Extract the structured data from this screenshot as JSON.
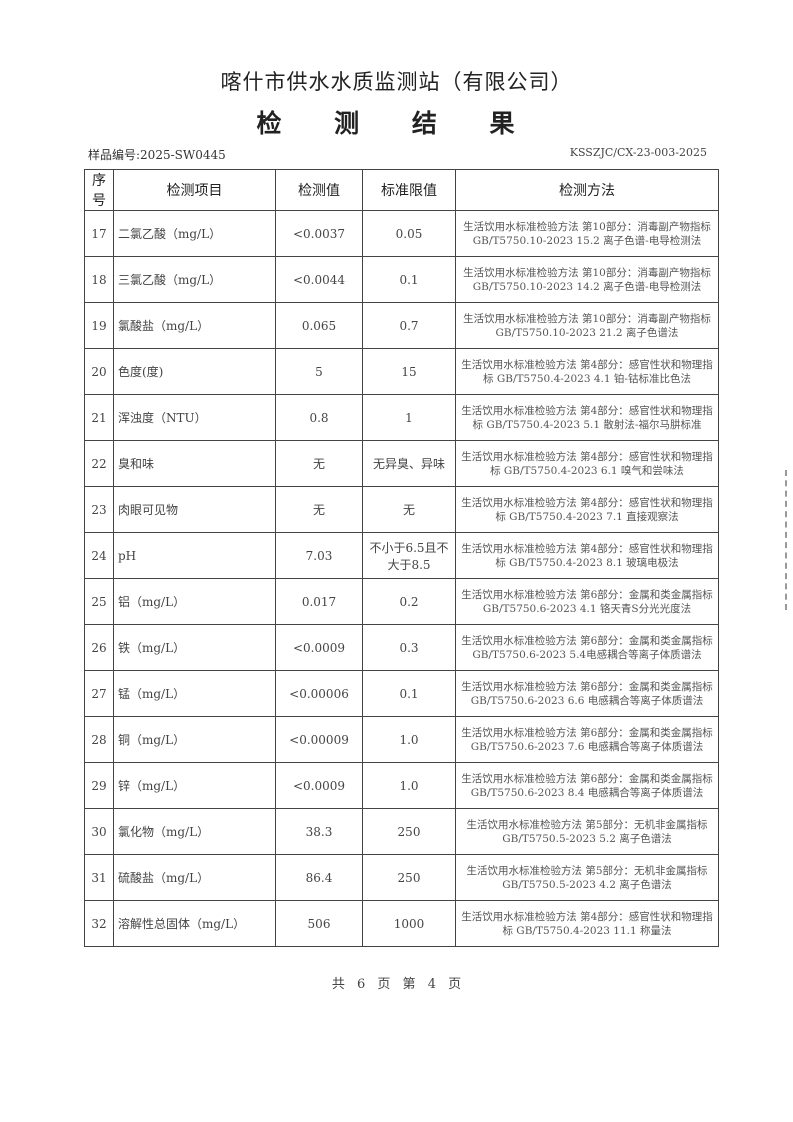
{
  "header": {
    "organization": "喀什市供水水质监测站（有限公司）",
    "title": "检 测 结 果",
    "sample_no": "样品编号:2025-SW0445",
    "doc_code": "KSSZJC/CX-23-003-2025"
  },
  "table": {
    "columns": [
      "序号",
      "检测项目",
      "检测值",
      "标准限值",
      "检测方法"
    ],
    "rows": [
      {
        "no": "17",
        "item": "二氯乙酸（mg/L）",
        "value": "<0.0037",
        "limit": "0.05",
        "method": "生活饮用水标准检验方法 第10部分：消毒副产物指标 GB/T5750.10-2023 15.2 离子色谱-电导检测法"
      },
      {
        "no": "18",
        "item": "三氯乙酸（mg/L）",
        "value": "<0.0044",
        "limit": "0.1",
        "method": "生活饮用水标准检验方法 第10部分：消毒副产物指标 GB/T5750.10-2023 14.2 离子色谱-电导检测法"
      },
      {
        "no": "19",
        "item": "氯酸盐（mg/L）",
        "value": "0.065",
        "limit": "0.7",
        "method": "生活饮用水标准检验方法 第10部分：消毒副产物指标 GB/T5750.10-2023 21.2 离子色谱法"
      },
      {
        "no": "20",
        "item": "色度(度)",
        "value": "5",
        "limit": "15",
        "method": "生活饮用水标准检验方法 第4部分：感官性状和物理指标 GB/T5750.4-2023 4.1 铂-钴标准比色法"
      },
      {
        "no": "21",
        "item": "浑浊度（NTU）",
        "value": "0.8",
        "limit": "1",
        "method": "生活饮用水标准检验方法 第4部分：感官性状和物理指标 GB/T5750.4-2023 5.1 散射法-福尔马肼标准"
      },
      {
        "no": "22",
        "item": "臭和味",
        "value": "无",
        "limit": "无异臭、异味",
        "method": "生活饮用水标准检验方法 第4部分：感官性状和物理指标 GB/T5750.4-2023 6.1 嗅气和尝味法"
      },
      {
        "no": "23",
        "item": "肉眼可见物",
        "value": "无",
        "limit": "无",
        "method": "生活饮用水标准检验方法 第4部分：感官性状和物理指标 GB/T5750.4-2023 7.1 直接观察法"
      },
      {
        "no": "24",
        "item": "pH",
        "value": "7.03",
        "limit": "不小于6.5且不大于8.5",
        "method": "生活饮用水标准检验方法 第4部分：感官性状和物理指标 GB/T5750.4-2023 8.1 玻璃电极法"
      },
      {
        "no": "25",
        "item": "铝（mg/L）",
        "value": "0.017",
        "limit": "0.2",
        "method": "生活饮用水标准检验方法 第6部分：金属和类金属指标 GB/T5750.6-2023 4.1 铬天青S分光光度法"
      },
      {
        "no": "26",
        "item": "铁（mg/L）",
        "value": "<0.0009",
        "limit": "0.3",
        "method": "生活饮用水标准检验方法 第6部分：金属和类金属指标 GB/T5750.6-2023 5.4电感耦合等离子体质谱法"
      },
      {
        "no": "27",
        "item": "锰（mg/L）",
        "value": "<0.00006",
        "limit": "0.1",
        "method": "生活饮用水标准检验方法 第6部分：金属和类金属指标 GB/T5750.6-2023 6.6 电感耦合等离子体质谱法"
      },
      {
        "no": "28",
        "item": "铜（mg/L）",
        "value": "<0.00009",
        "limit": "1.0",
        "method": "生活饮用水标准检验方法 第6部分：金属和类金属指标 GB/T5750.6-2023 7.6 电感耦合等离子体质谱法"
      },
      {
        "no": "29",
        "item": "锌（mg/L）",
        "value": "<0.0009",
        "limit": "1.0",
        "method": "生活饮用水标准检验方法 第6部分：金属和类金属指标 GB/T5750.6-2023 8.4 电感耦合等离子体质谱法"
      },
      {
        "no": "30",
        "item": "氯化物（mg/L）",
        "value": "38.3",
        "limit": "250",
        "method": "生活饮用水标准检验方法 第5部分：无机非金属指标 GB/T5750.5-2023 5.2 离子色谱法"
      },
      {
        "no": "31",
        "item": "硫酸盐（mg/L）",
        "value": "86.4",
        "limit": "250",
        "method": "生活饮用水标准检验方法 第5部分：无机非金属指标 GB/T5750.5-2023 4.2 离子色谱法"
      },
      {
        "no": "32",
        "item": "溶解性总固体（mg/L）",
        "value": "506",
        "limit": "1000",
        "method": "生活饮用水标准检验方法 第4部分：感官性状和物理指标 GB/T5750.4-2023 11.1 称量法"
      }
    ]
  },
  "footer": {
    "pages": "共 6 页  第 4 页"
  }
}
